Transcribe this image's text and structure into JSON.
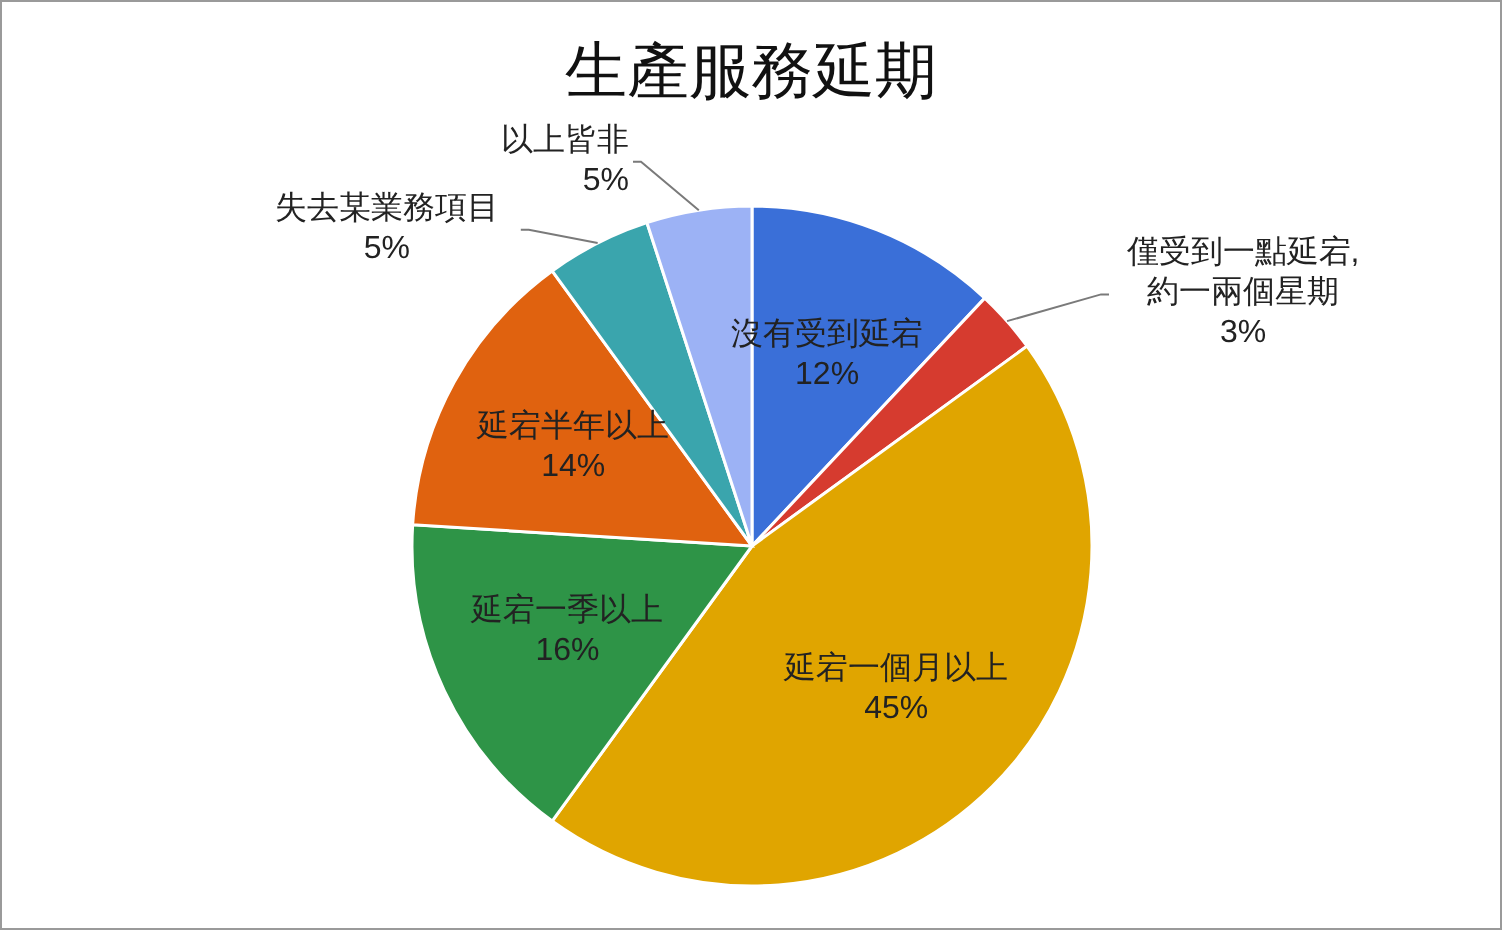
{
  "chart_data": {
    "type": "pie",
    "title": "生產服務延期",
    "categories": [
      "沒有受到延宕",
      "僅受到一點延宕,約一兩個星期",
      "延宕一個月以上",
      "延宕一季以上",
      "延宕半年以上",
      "失去某業務項目",
      "以上皆非"
    ],
    "values": [
      12,
      3,
      45,
      16,
      14,
      5,
      5
    ],
    "colors": [
      "#3a6fd8",
      "#d63b2f",
      "#e0a500",
      "#2e9447",
      "#e0620f",
      "#3aa5ad",
      "#9cb2f5"
    ],
    "value_labels": [
      "12%",
      "3%",
      "45%",
      "16%",
      "14%",
      "5%",
      "5%"
    ],
    "data_labels": true
  }
}
